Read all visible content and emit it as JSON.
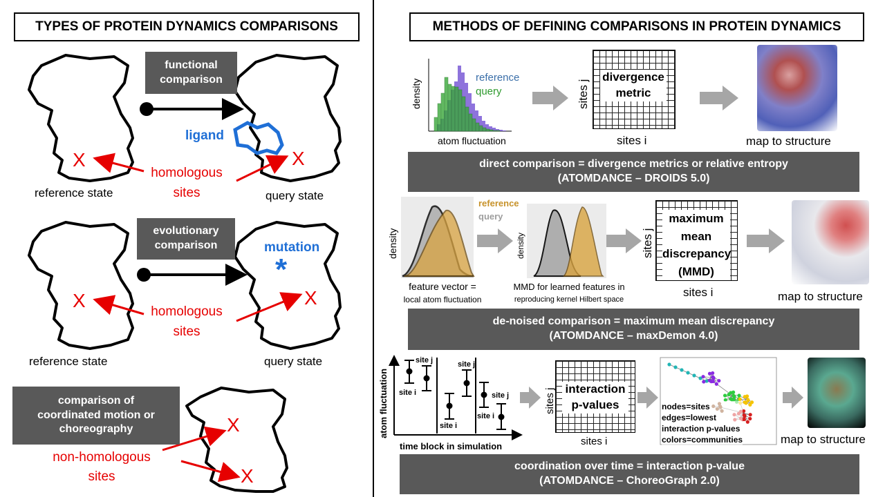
{
  "left": {
    "title": "TYPES OF PROTEIN DYNAMICS COMPARISONS",
    "functional": {
      "box_lines": [
        "functional",
        "comparison"
      ],
      "ligand": "ligand",
      "homologous_lines": [
        "homologous",
        "sites"
      ],
      "reference": "reference  state",
      "query": "query state",
      "marker": "X"
    },
    "evolutionary": {
      "box_lines": [
        "evolutionary",
        "comparison"
      ],
      "mutation": "mutation",
      "star": "*",
      "homologous_lines": [
        "homologous",
        "sites"
      ],
      "reference": "reference  state",
      "query": "query state",
      "marker": "X"
    },
    "coordinated": {
      "box_lines": [
        "comparison  of",
        "coordinated  motion or",
        "choreography"
      ],
      "nonhomologous_lines": [
        "non-homologous",
        "sites"
      ],
      "marker": "X"
    }
  },
  "right": {
    "title": "METHODS OF DEFINING COMPARISONS IN PROTEIN DYNAMICS",
    "row1": {
      "ylabel": "density",
      "xlabel": "atom fluctuation",
      "legend_reference": "reference",
      "legend_query": "query",
      "grid_lines": [
        "divergence",
        "metric"
      ],
      "sites_j": "sites j",
      "sites_i": "sites i",
      "map": "map to structure",
      "banner": [
        "direct comparison   = divergence metrics or relative entropy",
        "(ATOMDANCE – DROIDS 5.0)"
      ]
    },
    "row2": {
      "ylabel1": "density",
      "ylabel2": "density",
      "legend_reference": "reference",
      "legend_query": "query",
      "caption1": [
        "feature vector =",
        "local atom fluctuation"
      ],
      "caption2": [
        "MMD for learned features in",
        "reproducing kernel Hilbert space"
      ],
      "grid_lines": [
        "maximum",
        "mean",
        "discrepancy",
        "(MMD)"
      ],
      "sites_j": "sites j",
      "sites_i": "sites i",
      "map": "map to structure",
      "banner": [
        "de-noised comparison  = maximum mean discrepancy",
        "(ATOMDANCE – maxDemon 4.0)"
      ]
    },
    "row3": {
      "ylabel": "atom fluctuation",
      "xlabel": "time block in simulation",
      "site_j": "site j",
      "site_i": "site i",
      "grid_lines": [
        "interaction",
        "p-values"
      ],
      "sites_j": "sites j",
      "sites_i": "sites i",
      "network_legend": [
        "nodes=sites",
        "edges=lowest",
        "interaction p-values",
        "colors=communities"
      ],
      "map": "map to structure",
      "banner": [
        "coordination  over time = interaction p-value",
        "(ATOMDANCE – ChoreoGraph  2.0)"
      ]
    }
  },
  "colors": {
    "red": "#e60000",
    "blue": "#1f6fd6",
    "box_gray": "#595959",
    "arrow_gray": "#a6a6a6",
    "reference_green_hist": "#3aa83a",
    "query_purple_hist": "#7b5bd6",
    "reference_tan": "#d9a441",
    "query_gray": "#9e9e9e"
  }
}
